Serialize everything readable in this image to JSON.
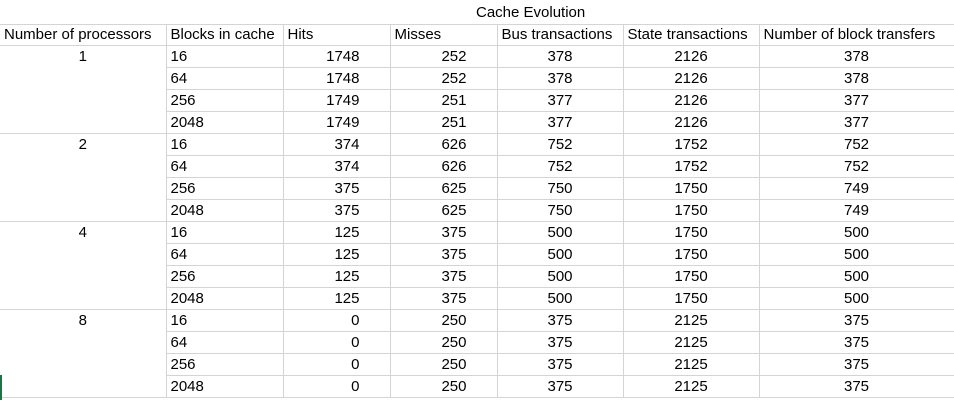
{
  "title": "Cache Evolution",
  "columns": [
    "Number of processors",
    "Blocks in cache",
    "Hits",
    "Misses",
    "Bus transactions",
    "State transactions",
    "Number of block transfers"
  ],
  "groups": [
    {
      "processors": "1",
      "rows": [
        {
          "blocks": "16",
          "hits": "1748",
          "misses": "252",
          "bus": "378",
          "state": "2126",
          "transfers": "378"
        },
        {
          "blocks": "64",
          "hits": "1748",
          "misses": "252",
          "bus": "378",
          "state": "2126",
          "transfers": "378"
        },
        {
          "blocks": "256",
          "hits": "1749",
          "misses": "251",
          "bus": "377",
          "state": "2126",
          "transfers": "377"
        },
        {
          "blocks": "2048",
          "hits": "1749",
          "misses": "251",
          "bus": "377",
          "state": "2126",
          "transfers": "377"
        }
      ]
    },
    {
      "processors": "2",
      "rows": [
        {
          "blocks": "16",
          "hits": "374",
          "misses": "626",
          "bus": "752",
          "state": "1752",
          "transfers": "752"
        },
        {
          "blocks": "64",
          "hits": "374",
          "misses": "626",
          "bus": "752",
          "state": "1752",
          "transfers": "752"
        },
        {
          "blocks": "256",
          "hits": "375",
          "misses": "625",
          "bus": "750",
          "state": "1750",
          "transfers": "749"
        },
        {
          "blocks": "2048",
          "hits": "375",
          "misses": "625",
          "bus": "750",
          "state": "1750",
          "transfers": "749"
        }
      ]
    },
    {
      "processors": "4",
      "rows": [
        {
          "blocks": "16",
          "hits": "125",
          "misses": "375",
          "bus": "500",
          "state": "1750",
          "transfers": "500"
        },
        {
          "blocks": "64",
          "hits": "125",
          "misses": "375",
          "bus": "500",
          "state": "1750",
          "transfers": "500"
        },
        {
          "blocks": "256",
          "hits": "125",
          "misses": "375",
          "bus": "500",
          "state": "1750",
          "transfers": "500"
        },
        {
          "blocks": "2048",
          "hits": "125",
          "misses": "375",
          "bus": "500",
          "state": "1750",
          "transfers": "500"
        }
      ]
    },
    {
      "processors": "8",
      "rows": [
        {
          "blocks": "16",
          "hits": "0",
          "misses": "250",
          "bus": "375",
          "state": "2125",
          "transfers": "375"
        },
        {
          "blocks": "64",
          "hits": "0",
          "misses": "250",
          "bus": "375",
          "state": "2125",
          "transfers": "375"
        },
        {
          "blocks": "256",
          "hits": "0",
          "misses": "250",
          "bus": "375",
          "state": "2125",
          "transfers": "375"
        },
        {
          "blocks": "2048",
          "hits": "0",
          "misses": "250",
          "bus": "375",
          "state": "2125",
          "transfers": "375"
        }
      ]
    }
  ]
}
